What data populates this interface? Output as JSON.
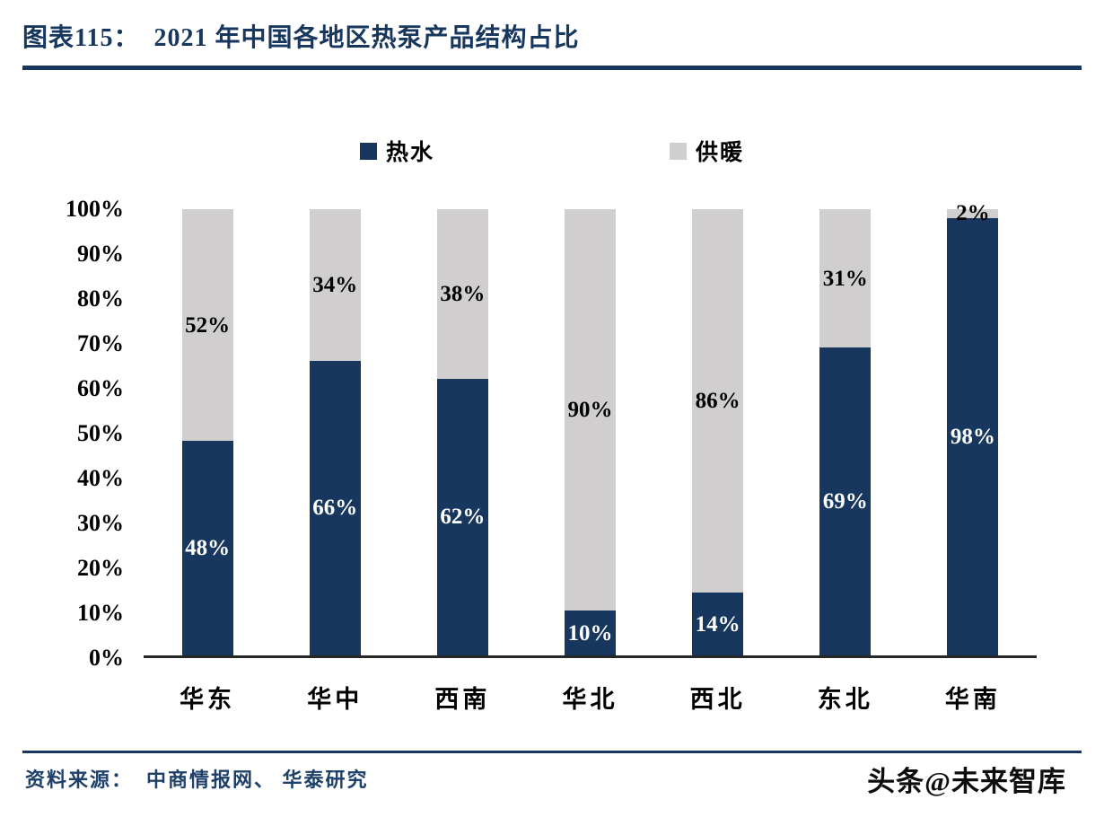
{
  "header": {
    "title": "图表115：  2021 年中国各地区热泵产品结构占比"
  },
  "chart_data": {
    "type": "bar",
    "stacked": true,
    "title": "2021 年中国各地区热泵产品结构占比",
    "categories": [
      "华东",
      "华中",
      "西南",
      "华北",
      "西北",
      "东北",
      "华南"
    ],
    "series": [
      {
        "name": "热水",
        "color": "#17375E",
        "label_color": "#FFFFFF",
        "values": [
          48,
          66,
          62,
          10,
          14,
          69,
          98
        ]
      },
      {
        "name": "供暖",
        "color": "#D0CECE",
        "label_color": "#000000",
        "values": [
          52,
          34,
          38,
          90,
          86,
          31,
          2
        ]
      }
    ],
    "value_suffix": "%",
    "ylim": [
      0,
      100
    ],
    "ytick_step": 10,
    "yticks": [
      "0%",
      "10%",
      "20%",
      "30%",
      "40%",
      "50%",
      "60%",
      "70%",
      "80%",
      "90%",
      "100%"
    ],
    "grid": false,
    "legend_position": "top"
  },
  "footer": {
    "source": "资料来源：  中商情报网、 华泰研究",
    "watermark": "头条@未来智库"
  },
  "colors": {
    "navy": "#17375E",
    "gray": "#D0CECE",
    "axis": "#262626"
  }
}
